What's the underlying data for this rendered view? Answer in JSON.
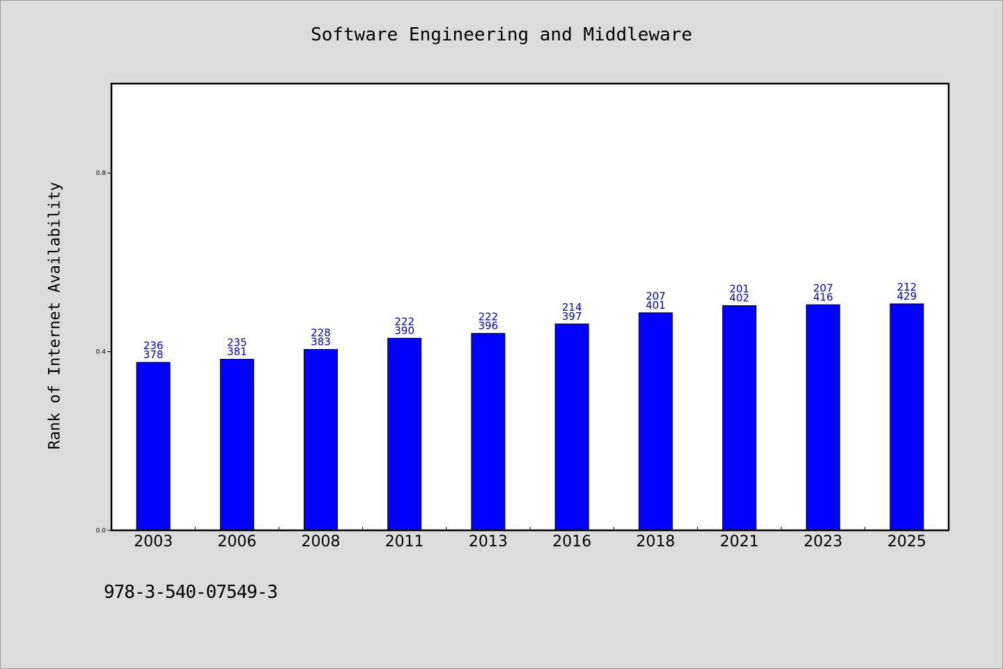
{
  "chart_data": {
    "type": "bar",
    "title": "Software Engineering and Middleware",
    "xlabel": "",
    "ylabel": "Rank of Internet Availability",
    "ylim": [
      0,
      1.0
    ],
    "yticks": [
      0.0,
      0.4,
      0.8
    ],
    "ytick_labels": [
      "0.0",
      "0.4",
      "0.8"
    ],
    "categories": [
      "2003",
      "2006",
      "2008",
      "2011",
      "2013",
      "2016",
      "2018",
      "2021",
      "2023",
      "2025"
    ],
    "values": [
      0.376,
      0.383,
      0.405,
      0.43,
      0.441,
      0.462,
      0.487,
      0.503,
      0.505,
      0.507
    ],
    "data_labels_top": [
      "236",
      "235",
      "228",
      "222",
      "222",
      "214",
      "207",
      "201",
      "207",
      "212"
    ],
    "data_labels_bottom": [
      "378",
      "381",
      "383",
      "390",
      "396",
      "397",
      "401",
      "402",
      "416",
      "429"
    ],
    "bar_color": "#0000ff",
    "label_color": "#0000cc",
    "grid": false,
    "legend": "none"
  },
  "footnote": "978-3-540-07549-3"
}
